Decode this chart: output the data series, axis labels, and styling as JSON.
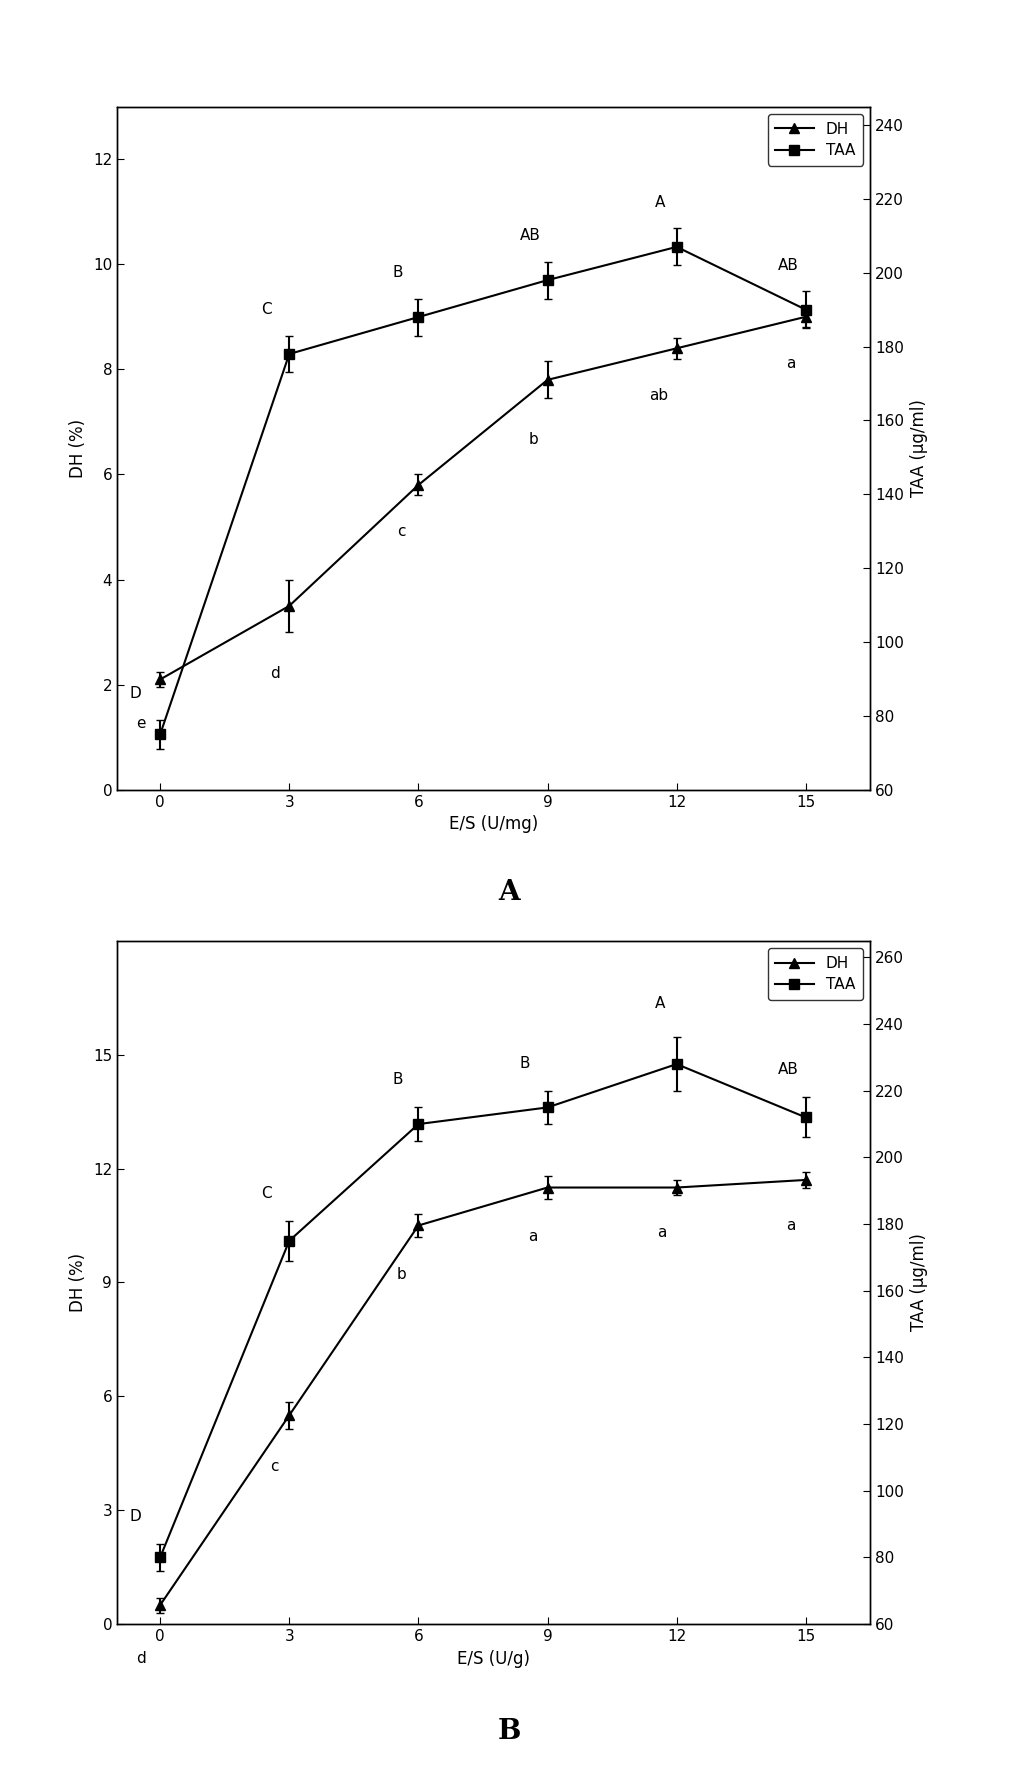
{
  "A": {
    "x": [
      0,
      3,
      6,
      9,
      12,
      15
    ],
    "dh_y": [
      2.1,
      3.5,
      5.8,
      7.8,
      8.4,
      9.0
    ],
    "dh_err": [
      0.15,
      0.5,
      0.2,
      0.35,
      0.2,
      0.2
    ],
    "taa_y": [
      75,
      178,
      188,
      198,
      207,
      190
    ],
    "taa_err": [
      4,
      5,
      5,
      5,
      5,
      5
    ],
    "dh_ylim": [
      0,
      13
    ],
    "dh_yticks": [
      0,
      2,
      4,
      6,
      8,
      10,
      12
    ],
    "taa_ylim": [
      60,
      245
    ],
    "taa_yticks": [
      60,
      80,
      100,
      120,
      140,
      160,
      180,
      200,
      220,
      240
    ],
    "xlabel": "E/S (U/mg)",
    "ylabel_left": "DH (%)",
    "ylabel_right": "TAA (μg/ml)",
    "panel_label": "A",
    "annot_upper": [
      "D",
      "C",
      "B",
      "AB",
      "A",
      "AB"
    ],
    "annot_lower": [
      "e",
      "d",
      "c",
      "b",
      "ab",
      "a"
    ],
    "annot_upper_dx": [
      -0.7,
      -0.65,
      -0.6,
      -0.65,
      -0.5,
      -0.65
    ],
    "annot_upper_dy": [
      5,
      5,
      5,
      5,
      5,
      5
    ],
    "annot_lower_dx": [
      -0.55,
      -0.45,
      -0.5,
      -0.45,
      -0.65,
      -0.45
    ],
    "annot_lower_dy": [
      -0.55,
      -0.65,
      -0.55,
      -0.65,
      -0.55,
      -0.55
    ]
  },
  "B": {
    "x": [
      0,
      3,
      6,
      9,
      12,
      15
    ],
    "dh_y": [
      0.5,
      5.5,
      10.5,
      11.5,
      11.5,
      11.7
    ],
    "dh_err": [
      0.2,
      0.35,
      0.3,
      0.3,
      0.2,
      0.2
    ],
    "taa_y": [
      80,
      175,
      210,
      215,
      228,
      212
    ],
    "taa_err": [
      4,
      6,
      5,
      5,
      8,
      6
    ],
    "dh_ylim": [
      0,
      18
    ],
    "dh_yticks": [
      0,
      3,
      6,
      9,
      12,
      15
    ],
    "taa_ylim": [
      60,
      265
    ],
    "taa_yticks": [
      60,
      80,
      100,
      120,
      140,
      160,
      180,
      200,
      220,
      240,
      260
    ],
    "xlabel": "E/S (U/g)",
    "ylabel_left": "DH (%)",
    "ylabel_right": "TAA (μg/ml)",
    "panel_label": "B",
    "annot_upper": [
      "D",
      "C",
      "B",
      "B",
      "A",
      "AB"
    ],
    "annot_lower": [
      "d",
      "c",
      "b",
      "a",
      "a",
      "a"
    ],
    "annot_upper_dx": [
      -0.7,
      -0.65,
      -0.6,
      -0.65,
      -0.5,
      -0.65
    ],
    "annot_upper_dy": [
      6,
      6,
      6,
      6,
      8,
      6
    ],
    "annot_lower_dx": [
      -0.55,
      -0.45,
      -0.5,
      -0.45,
      -0.45,
      -0.45
    ],
    "annot_lower_dy": [
      -1.0,
      -0.8,
      -0.8,
      -0.8,
      -0.8,
      -0.8
    ]
  },
  "bg_color": "#ffffff",
  "line_color": "#000000",
  "marker_dh": "^",
  "marker_taa": "s",
  "markersize": 7,
  "linewidth": 1.5,
  "fontsize_tick": 11,
  "fontsize_label": 12,
  "fontsize_annot": 11,
  "fontsize_legend": 11,
  "fontsize_panel": 20
}
